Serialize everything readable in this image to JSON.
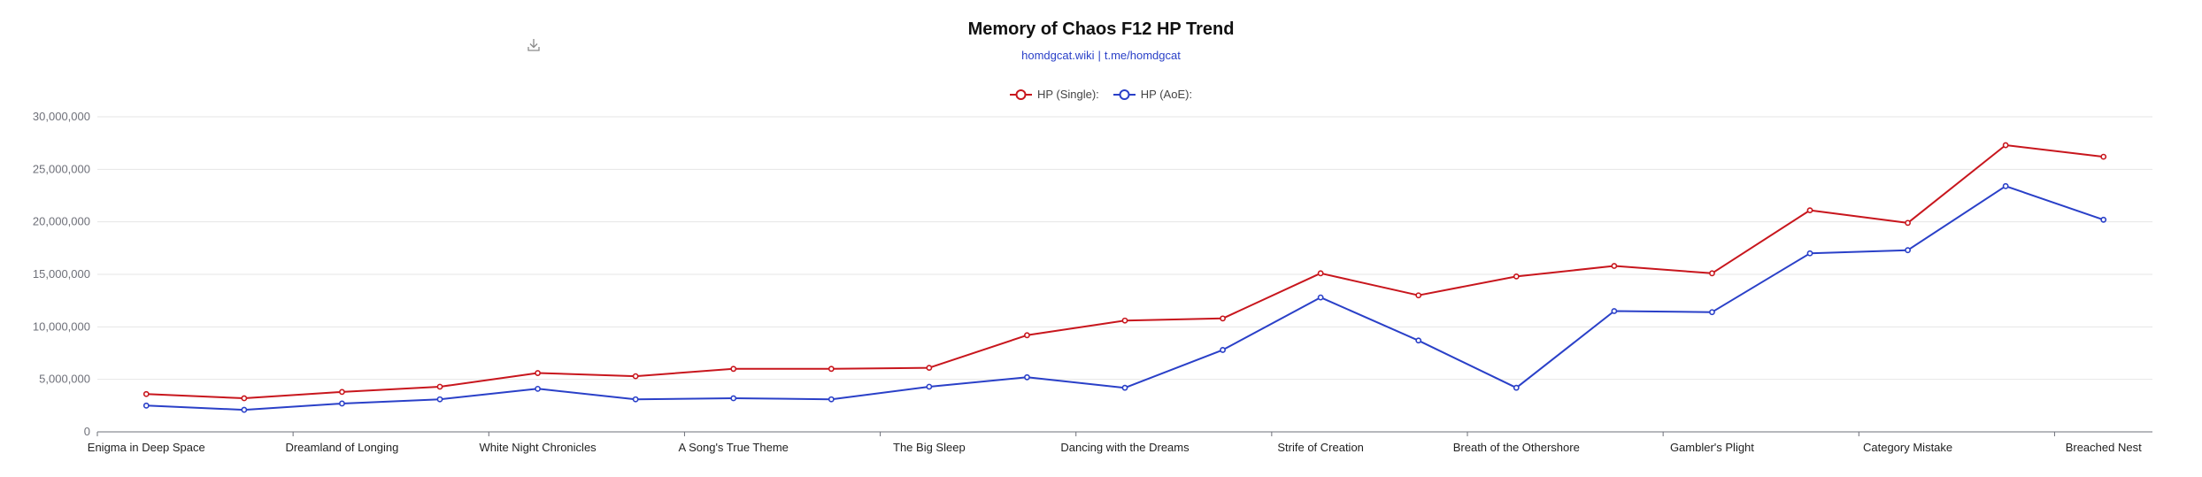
{
  "header": {
    "title": "Memory of Chaos F12 HP Trend",
    "link1": "homdgcat.wiki",
    "separator": "|",
    "link2": "t.me/homdgcat"
  },
  "toolbar": {
    "download_icon": "download-icon"
  },
  "colors": {
    "single": "#c8161d",
    "aoe": "#2a40c8",
    "grid": "#e6e6e6",
    "axis": "#6e7079"
  },
  "chart_data": {
    "type": "line",
    "title": "Memory of Chaos F12 HP Trend",
    "subtitle": "homdgcat.wiki | t.me/homdgcat",
    "ylim": [
      0,
      30000000
    ],
    "yticks": [
      0,
      5000000,
      10000000,
      15000000,
      20000000,
      25000000,
      30000000
    ],
    "ytick_labels": [
      "0",
      "5,000,000",
      "10,000,000",
      "15,000,000",
      "20,000,000",
      "25,000,000",
      "30,000,000"
    ],
    "grid": true,
    "legend_position": "top-center",
    "categories": [
      "Enigma in Deep Space",
      "",
      "Dreamland of Longing",
      "",
      "White Night Chronicles",
      "",
      "A Song's True Theme",
      "",
      "The Big Sleep",
      "",
      "Dancing with the Dreams",
      "",
      "Strife of Creation",
      "",
      "Breath of the Othershore",
      "",
      "Gambler's Plight",
      "",
      "Category Mistake",
      "",
      "Breached Nest"
    ],
    "series": [
      {
        "name": "HP (Single):",
        "color": "#c8161d",
        "values": [
          3600000,
          3200000,
          3800000,
          4300000,
          5600000,
          5300000,
          6000000,
          6000000,
          6100000,
          9200000,
          10600000,
          10800000,
          15100000,
          13000000,
          14800000,
          15800000,
          15100000,
          21100000,
          19900000,
          27300000,
          26200000
        ]
      },
      {
        "name": "HP (AoE):",
        "color": "#2a40c8",
        "values": [
          2500000,
          2100000,
          2700000,
          3100000,
          4100000,
          3100000,
          3200000,
          3100000,
          4300000,
          5200000,
          4200000,
          7800000,
          12800000,
          8700000,
          4200000,
          11500000,
          11400000,
          17000000,
          17300000,
          23400000,
          20200000
        ]
      }
    ]
  }
}
